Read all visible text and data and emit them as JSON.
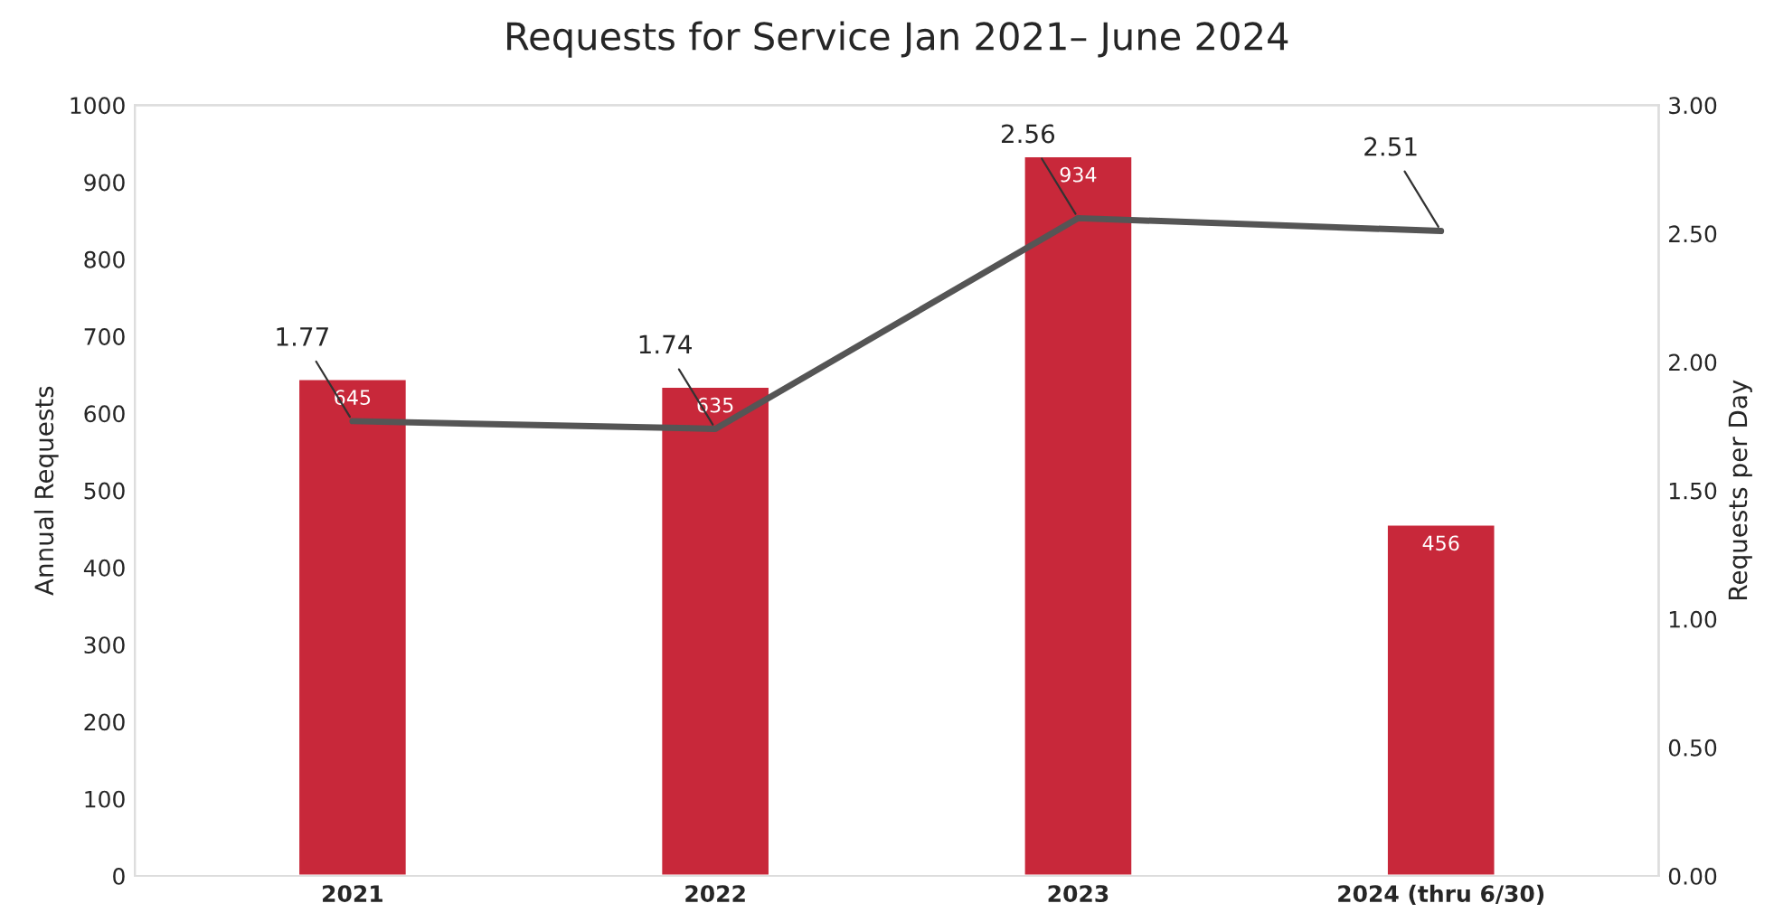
{
  "chart_data": {
    "type": "bar",
    "title": "Requests for Service Jan 2021– June 2024",
    "categories": [
      "2021",
      "2022",
      "2023",
      "2024 (thru 6/30)"
    ],
    "ylabel": "Annual Requests",
    "y2label": "Requests per Day",
    "series": [
      {
        "color": "#c8283a",
        "values": [
          645,
          635,
          934,
          456
        ]
      },
      {
        "type": "line",
        "axis": "y2",
        "color": "#555555",
        "values": [
          1.77,
          1.74,
          2.56,
          2.51
        ]
      }
    ],
    "ylim": [
      0,
      1000
    ],
    "yticks": [
      0,
      100,
      200,
      300,
      400,
      500,
      600,
      700,
      800,
      900,
      1000
    ],
    "y2lim": [
      0,
      3
    ],
    "y2ticks": [
      {
        "value": 0,
        "label": "0.00"
      },
      {
        "value": 0.5,
        "label": "0.50"
      },
      {
        "value": 1,
        "label": "1.00"
      },
      {
        "value": 1.5,
        "label": "1.50"
      },
      {
        "value": 2,
        "label": "2.00"
      },
      {
        "value": 2.5,
        "label": "2.50"
      },
      {
        "value": 3,
        "label": "3.00"
      }
    ],
    "data_labels": true,
    "grid": false,
    "marker": "none",
    "line_style": "solid"
  }
}
